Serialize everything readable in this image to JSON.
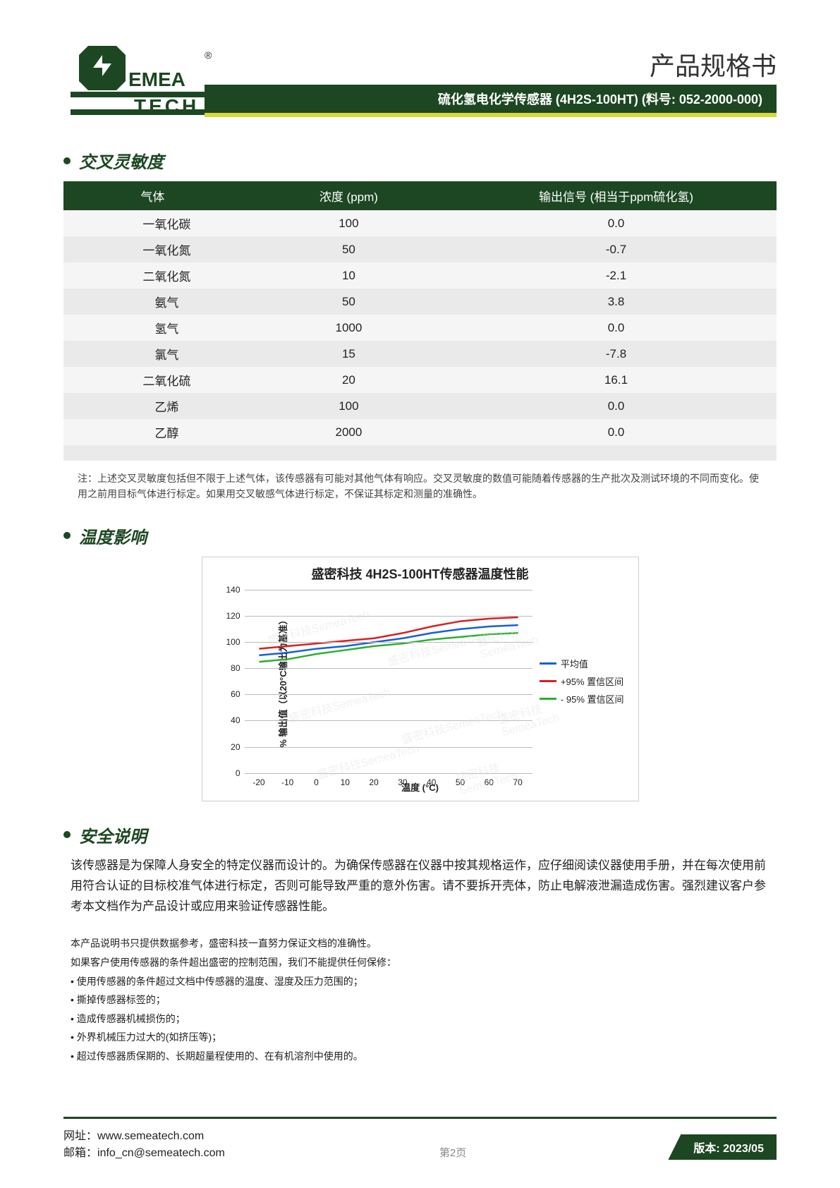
{
  "header": {
    "brand": "SEMEA TECH",
    "doc_title": "产品规格书",
    "product_line": "硫化氢电化学传感器 (4H2S-100HT) (料号: 052-2000-000)",
    "reg_mark": "®"
  },
  "sections": {
    "cross_sensitivity": {
      "title": "交叉灵敏度",
      "columns": [
        "气体",
        "浓度 (ppm)",
        "输出信号 (相当于ppm硫化氢)"
      ],
      "rows": [
        [
          "一氧化碳",
          "100",
          "0.0"
        ],
        [
          "一氧化氮",
          "50",
          "-0.7"
        ],
        [
          "二氧化氮",
          "10",
          "-2.1"
        ],
        [
          "氨气",
          "50",
          "3.8"
        ],
        [
          "氢气",
          "1000",
          "0.0"
        ],
        [
          "氯气",
          "15",
          "-7.8"
        ],
        [
          "二氧化硫",
          "20",
          "16.1"
        ],
        [
          "乙烯",
          "100",
          "0.0"
        ],
        [
          "乙醇",
          "2000",
          "0.0"
        ]
      ],
      "note": "注：上述交叉灵敏度包括但不限于上述气体，该传感器有可能对其他气体有响应。交叉灵敏度的数值可能随着传感器的生产批次及测试环境的不同而变化。使用之前用目标气体进行标定。如果用交叉敏感气体进行标定，不保证其标定和测量的准确性。"
    },
    "temp_effect": {
      "title": "温度影响",
      "chart": {
        "title": "盛密科技 4H2S-100HT传感器温度性能",
        "y_label": "% 输出值（以20°C输出为基准）",
        "x_label": "温度 (°C)",
        "y_ticks": [
          0,
          20,
          40,
          60,
          80,
          100,
          120,
          140
        ],
        "x_ticks": [
          -20,
          -10,
          0,
          10,
          20,
          30,
          40,
          50,
          60,
          70
        ],
        "ylim": [
          0,
          140
        ],
        "xlim": [
          -25,
          75
        ],
        "grid_color": "#bbbbbb",
        "background_color": "#ffffff",
        "legend": [
          {
            "label": "平均值",
            "color": "#1560d8"
          },
          {
            "label": "+95% 置信区间",
            "color": "#d82020"
          },
          {
            "label": "- 95% 置信区间",
            "color": "#2eae2e"
          }
        ],
        "series": {
          "mean": {
            "color": "#1560d8",
            "points": [
              [
                -20,
                90
              ],
              [
                -10,
                92
              ],
              [
                0,
                95
              ],
              [
                10,
                97
              ],
              [
                20,
                100
              ],
              [
                30,
                103
              ],
              [
                40,
                107
              ],
              [
                50,
                110
              ],
              [
                60,
                112
              ],
              [
                70,
                113
              ]
            ]
          },
          "upper": {
            "color": "#d82020",
            "points": [
              [
                -20,
                95
              ],
              [
                -10,
                97
              ],
              [
                0,
                99
              ],
              [
                10,
                101
              ],
              [
                20,
                103
              ],
              [
                30,
                107
              ],
              [
                40,
                112
              ],
              [
                50,
                116
              ],
              [
                60,
                118
              ],
              [
                70,
                119
              ]
            ]
          },
          "lower": {
            "color": "#2eae2e",
            "points": [
              [
                -20,
                85
              ],
              [
                -10,
                87
              ],
              [
                0,
                91
              ],
              [
                10,
                94
              ],
              [
                20,
                97
              ],
              [
                30,
                99
              ],
              [
                40,
                102
              ],
              [
                50,
                104
              ],
              [
                60,
                106
              ],
              [
                70,
                107
              ]
            ]
          }
        },
        "watermark": "盛密科技SemeaTech"
      }
    },
    "safety": {
      "title": "安全说明",
      "body": "该传感器是为保障人身安全的特定仪器而设计的。为确保传感器在仪器中按其规格运作，应仔细阅读仪器使用手册，并在每次使用前用符合认证的目标校准气体进行标定，否则可能导致严重的意外伤害。请不要拆开壳体，防止电解液泄漏造成伤害。强烈建议客户参考本文档作为产品设计或应用来验证传感器性能。",
      "disclaimer_intro1": "本产品说明书只提供数据参考，盛密科技一直努力保证文档的准确性。",
      "disclaimer_intro2": "如果客户使用传感器的条件超出盛密的控制范围，我们不能提供任何保修：",
      "bullets": [
        "• 使用传感器的条件超过文档中传感器的温度、湿度及压力范围的；",
        "• 撕掉传感器标签的；",
        "• 造成传感器机械损伤的；",
        "• 外界机械压力过大的(如挤压等)；",
        "• 超过传感器质保期的、长期超量程使用的、在有机溶剂中使用的。"
      ]
    }
  },
  "footer": {
    "url_label": "网址：",
    "url": "www.semeatech.com",
    "email_label": "邮箱：",
    "email": "info_cn@semeatech.com",
    "page": "第2页",
    "version": "版本: 2023/05"
  },
  "colors": {
    "brand_green": "#1c4722",
    "accent_yellow": "#d8d838"
  }
}
